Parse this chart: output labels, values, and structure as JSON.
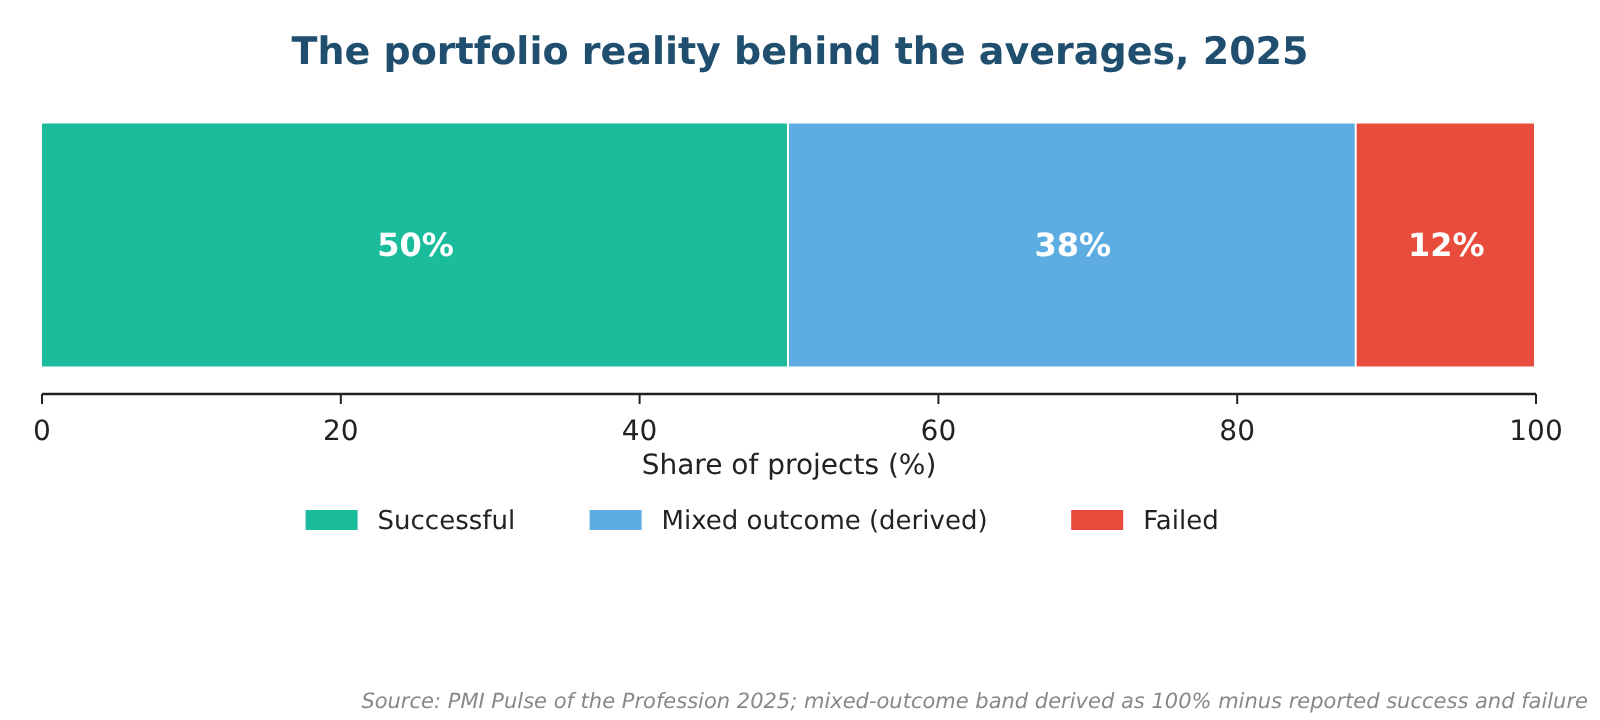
{
  "chart_data": {
    "type": "bar",
    "title": "The portfolio reality behind the averages, 2025",
    "xlabel": "Share of projects (%)",
    "orientation": "horizontal",
    "stacked": true,
    "categories": [
      null
    ],
    "series": [
      {
        "name": "Successful",
        "color": "#1abc9c",
        "values": [
          50
        ]
      },
      {
        "name": "Mixed outcome (derived)",
        "color": "#5dade2",
        "values": [
          38
        ]
      },
      {
        "name": "Failed",
        "color": "#e74c3c",
        "values": [
          12
        ]
      }
    ],
    "xlim": [
      0,
      100
    ],
    "xticks": [
      0,
      20,
      40,
      60,
      80,
      100
    ],
    "value_labels": [
      "50%",
      "38%",
      "12%"
    ],
    "legend": "bottom",
    "grid": false,
    "tick_labels": "x",
    "annotations": [
      "Source: PMI Pulse of the Profession 2025; mixed-outcome band derived as 100% minus reported success and failure"
    ]
  }
}
